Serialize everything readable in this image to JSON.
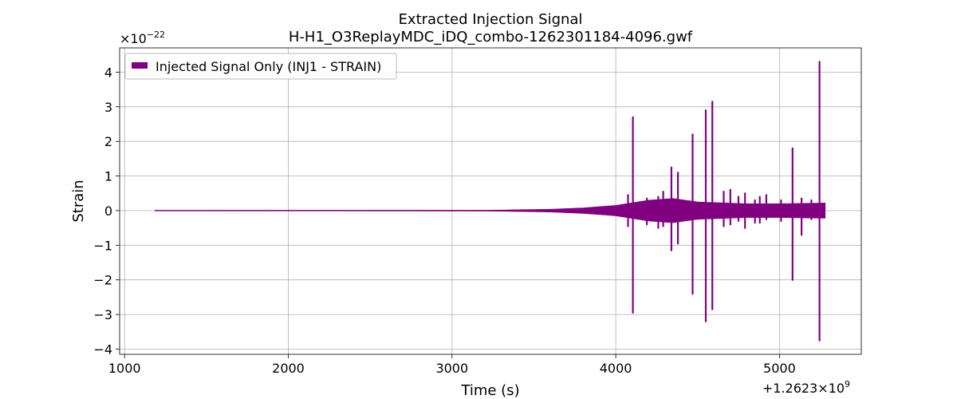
{
  "chart_data": {
    "type": "line",
    "title": "Extracted Injection Signal",
    "subtitle": "H-H1_O3ReplayMDC_iDQ_combo-1262301184-4096.gwf",
    "xlabel": "Time (s)",
    "ylabel": "Strain",
    "x_offset_label": "+1.2623×10",
    "x_offset_exp": "9",
    "y_scale_label": "×10",
    "y_scale_exp": "−22",
    "xlim": [
      970,
      5500
    ],
    "ylim": [
      -4.15,
      4.7
    ],
    "xticks": [
      1000,
      2000,
      3000,
      4000,
      5000
    ],
    "xtick_labels": [
      "1000",
      "2000",
      "3000",
      "4000",
      "5000"
    ],
    "yticks": [
      -4,
      -3,
      -2,
      -1,
      0,
      1,
      2,
      3,
      4
    ],
    "ytick_labels": [
      "−4",
      "−3",
      "−2",
      "−1",
      "0",
      "1",
      "2",
      "3",
      "4"
    ],
    "grid": true,
    "legend": {
      "position": "top-left",
      "label": "Injected Signal Only (INJ1 - STRAIN)"
    },
    "series": [
      {
        "name": "Injected Signal Only (INJ1 - STRAIN)",
        "color": "#800080",
        "x_range": [
          1185,
          5280
        ],
        "envelope": [
          {
            "x": 1185,
            "hi": 0.005,
            "lo": -0.005
          },
          {
            "x": 3200,
            "hi": 0.01,
            "lo": -0.01
          },
          {
            "x": 3600,
            "hi": 0.04,
            "lo": -0.04
          },
          {
            "x": 3800,
            "hi": 0.08,
            "lo": -0.08
          },
          {
            "x": 4000,
            "hi": 0.15,
            "lo": -0.15
          },
          {
            "x": 4200,
            "hi": 0.3,
            "lo": -0.3
          },
          {
            "x": 4350,
            "hi": 0.35,
            "lo": -0.35
          },
          {
            "x": 4500,
            "hi": 0.25,
            "lo": -0.25
          },
          {
            "x": 4800,
            "hi": 0.2,
            "lo": -0.2
          },
          {
            "x": 5000,
            "hi": 0.2,
            "lo": -0.2
          },
          {
            "x": 5280,
            "hi": 0.22,
            "lo": -0.22
          }
        ],
        "spikes": [
          {
            "x": 4075,
            "hi": 0.45,
            "lo": -0.45
          },
          {
            "x": 4105,
            "hi": 2.7,
            "lo": -2.95
          },
          {
            "x": 4190,
            "hi": 0.35,
            "lo": -0.4
          },
          {
            "x": 4260,
            "hi": 0.4,
            "lo": -0.5
          },
          {
            "x": 4290,
            "hi": 0.55,
            "lo": -0.45
          },
          {
            "x": 4340,
            "hi": 1.25,
            "lo": -1.15
          },
          {
            "x": 4380,
            "hi": 1.1,
            "lo": -0.95
          },
          {
            "x": 4470,
            "hi": 2.2,
            "lo": -2.4
          },
          {
            "x": 4550,
            "hi": 2.9,
            "lo": -3.2
          },
          {
            "x": 4590,
            "hi": 3.15,
            "lo": -2.85
          },
          {
            "x": 4660,
            "hi": 0.55,
            "lo": -0.45
          },
          {
            "x": 4700,
            "hi": 0.6,
            "lo": -0.4
          },
          {
            "x": 4750,
            "hi": 0.4,
            "lo": -0.3
          },
          {
            "x": 4790,
            "hi": 0.5,
            "lo": -0.5
          },
          {
            "x": 4850,
            "hi": 0.3,
            "lo": -0.35
          },
          {
            "x": 4880,
            "hi": 0.4,
            "lo": -0.35
          },
          {
            "x": 4920,
            "hi": 0.45,
            "lo": -0.25
          },
          {
            "x": 5010,
            "hi": 0.3,
            "lo": -0.3
          },
          {
            "x": 5080,
            "hi": 1.8,
            "lo": -2.0
          },
          {
            "x": 5135,
            "hi": 0.35,
            "lo": -0.7
          },
          {
            "x": 5195,
            "hi": 0.3,
            "lo": -0.25
          },
          {
            "x": 5245,
            "hi": 4.3,
            "lo": -3.75
          }
        ]
      }
    ]
  }
}
